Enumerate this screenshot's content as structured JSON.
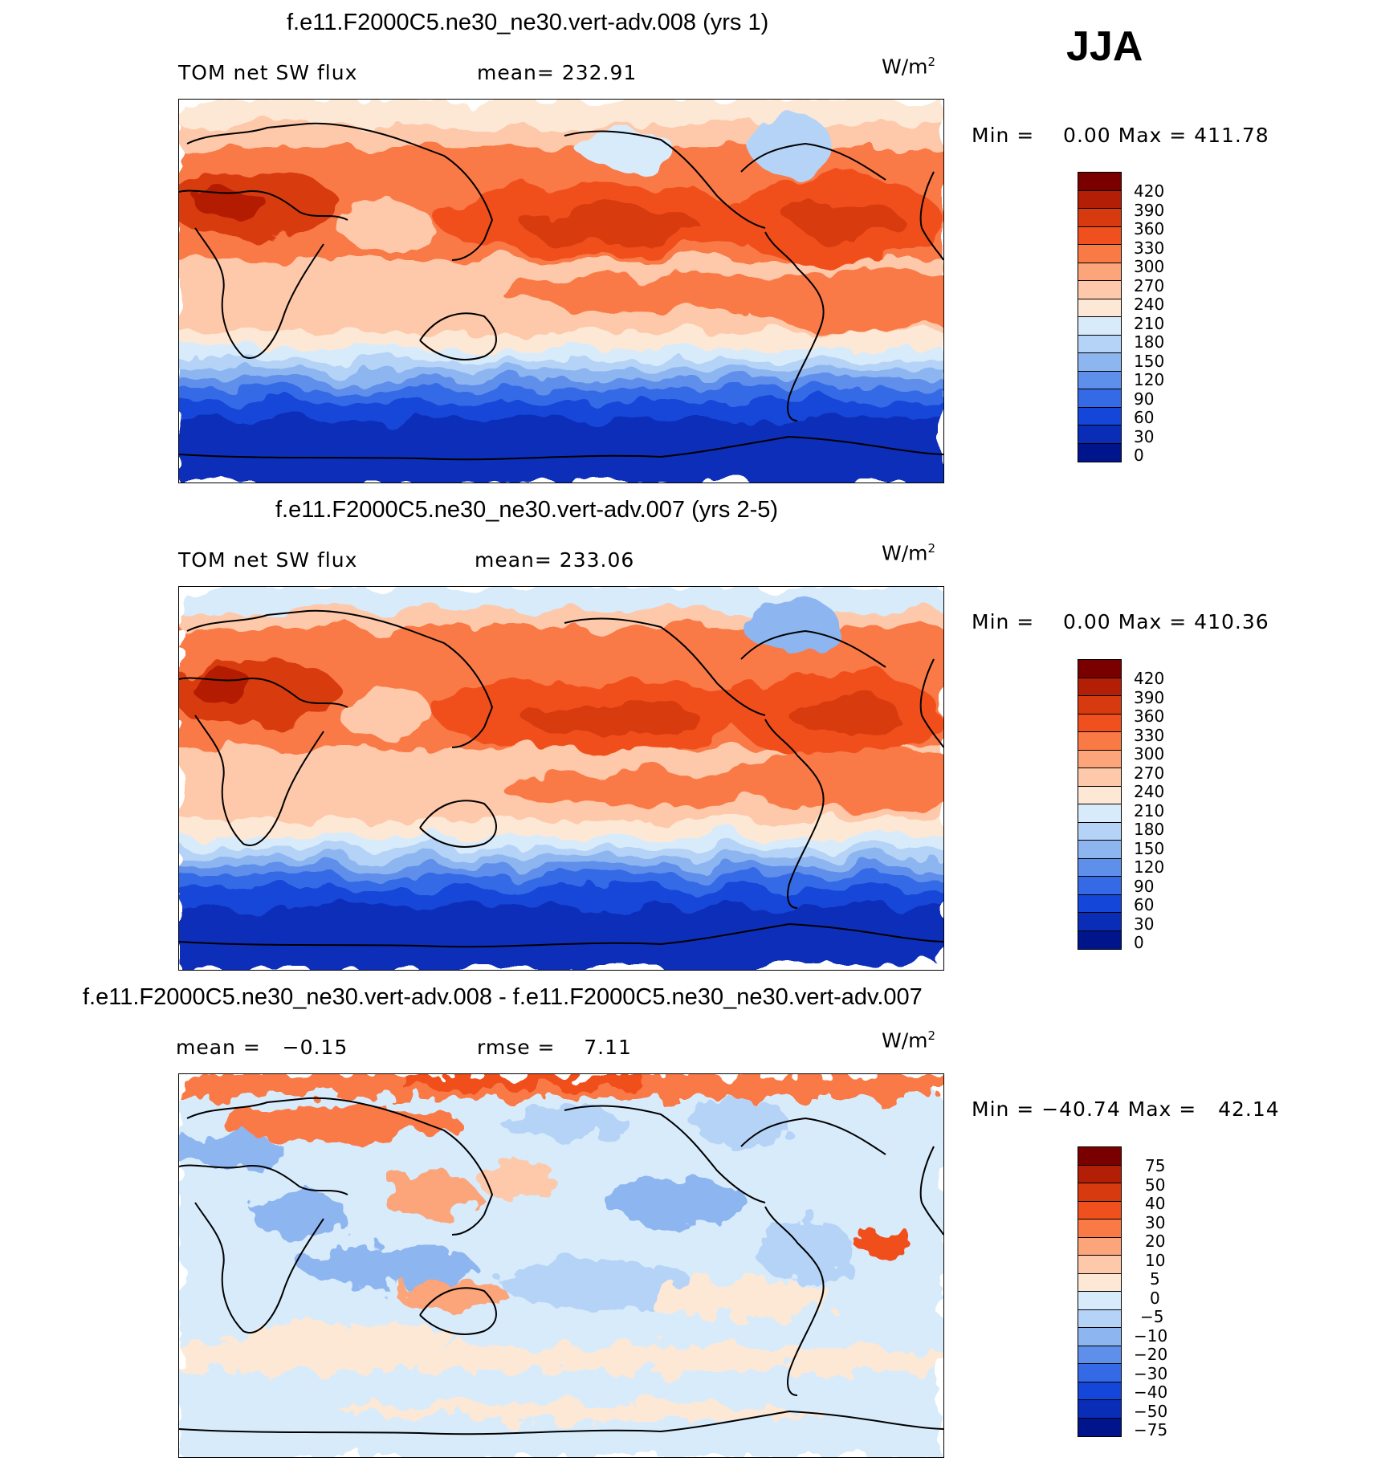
{
  "season": "JJA",
  "panels": [
    {
      "title": "f.e11.F2000C5.ne30_ne30.vert-adv.008 (yrs 1)",
      "left_label": "TOM net SW flux",
      "mid_label": "mean= 232.91",
      "units": "W/m",
      "units_sup": "2",
      "minmax": "Min =    0.00 Max = 411.78",
      "colorbar": {
        "labels": [
          "420",
          "390",
          "360",
          "330",
          "300",
          "270",
          "240",
          "210",
          "180",
          "150",
          "120",
          "90",
          "60",
          "30",
          "0"
        ],
        "colors": [
          "#7a0000",
          "#b31f06",
          "#d83a10",
          "#f0501e",
          "#fa7a46",
          "#fca47a",
          "#fdc9aa",
          "#fde8d6",
          "#d8ebfb",
          "#b5d3f6",
          "#8db5f0",
          "#5e8fea",
          "#356ae6",
          "#1446d9",
          "#0a2db8",
          "#00148c"
        ]
      }
    },
    {
      "title": "f.e11.F2000C5.ne30_ne30.vert-adv.007 (yrs 2-5)",
      "left_label": "TOM net SW flux",
      "mid_label": "mean= 233.06",
      "units": "W/m",
      "units_sup": "2",
      "minmax": "Min =    0.00 Max = 410.36",
      "colorbar": {
        "labels": [
          "420",
          "390",
          "360",
          "330",
          "300",
          "270",
          "240",
          "210",
          "180",
          "150",
          "120",
          "90",
          "60",
          "30",
          "0"
        ],
        "colors": [
          "#7a0000",
          "#b31f06",
          "#d83a10",
          "#f0501e",
          "#fa7a46",
          "#fca47a",
          "#fdc9aa",
          "#fde8d6",
          "#d8ebfb",
          "#b5d3f6",
          "#8db5f0",
          "#5e8fea",
          "#356ae6",
          "#1446d9",
          "#0a2db8",
          "#00148c"
        ]
      }
    },
    {
      "title": "f.e11.F2000C5.ne30_ne30.vert-adv.008 - f.e11.F2000C5.ne30_ne30.vert-adv.007",
      "left_label": "mean =   −0.15",
      "mid_label": "rmse =    7.11",
      "units": "W/m",
      "units_sup": "2",
      "minmax": "Min = −40.74 Max =   42.14",
      "colorbar": {
        "labels": [
          "75",
          "50",
          "40",
          "30",
          "20",
          "10",
          "5",
          "0",
          "−5",
          "−10",
          "−20",
          "−30",
          "−40",
          "−50",
          "−75"
        ],
        "colors": [
          "#7a0000",
          "#b31f06",
          "#d83a10",
          "#f0501e",
          "#fa7a46",
          "#fca47a",
          "#fdc9aa",
          "#fde8d6",
          "#d8ebfb",
          "#b5d3f6",
          "#8db5f0",
          "#5e8fea",
          "#356ae6",
          "#1446d9",
          "#0a2db8",
          "#00148c"
        ]
      }
    }
  ]
}
